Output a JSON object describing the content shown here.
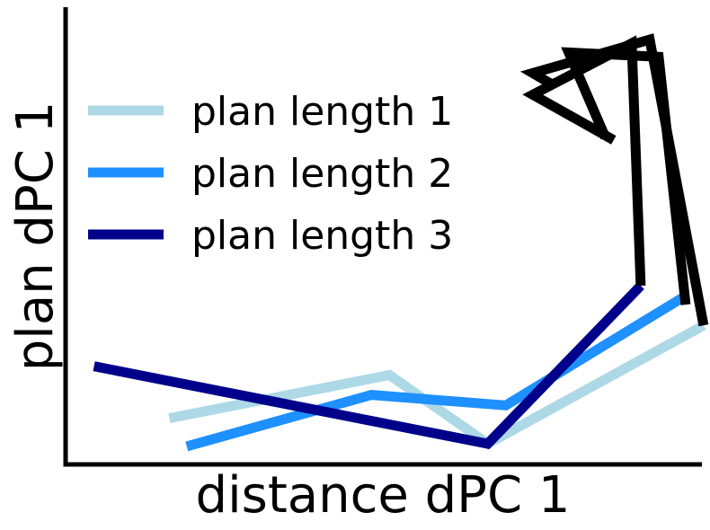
{
  "chart_data": {
    "type": "line",
    "xlabel": "distance dPC 1",
    "ylabel": "plan dPC 1",
    "xlim": [
      0,
      100
    ],
    "ylim": [
      0,
      100
    ],
    "grid": false,
    "legend_position": "upper-left",
    "series": [
      {
        "name": "plan length 1",
        "color": "#add8e6",
        "x": [
          15.0,
          46.8,
          61.0,
          92.2
        ],
        "y": [
          10.5,
          20.3,
          4.7,
          31.6
        ]
      },
      {
        "name": "plan length 2",
        "color": "#1e90ff",
        "x": [
          17.5,
          44.2,
          63.6,
          89.6
        ],
        "y": [
          4.1,
          15.8,
          13.4,
          38.3
        ]
      },
      {
        "name": "plan length 3",
        "color": "#00008b",
        "x": [
          4.1,
          41.6,
          61.0,
          83.1
        ],
        "y": [
          22.3,
          10.7,
          4.7,
          40.6
        ]
      },
      {
        "name": "",
        "color": "#000000",
        "x": [
          83.1,
          81.8,
          67.5,
          79.2
        ],
        "y": [
          40.6,
          95.7,
          84.0,
          73.7
        ]
      },
      {
        "name": "",
        "color": "#000000",
        "x": [
          92.2,
          84.4,
          67.5,
          70.1
        ],
        "y": [
          31.6,
          96.5,
          88.9,
          86.5
        ]
      },
      {
        "name": "",
        "color": "#000000",
        "x": [
          89.6,
          85.7,
          72.7,
          78.0
        ],
        "y": [
          36.3,
          92.6,
          93.6,
          74.3
        ]
      }
    ]
  }
}
